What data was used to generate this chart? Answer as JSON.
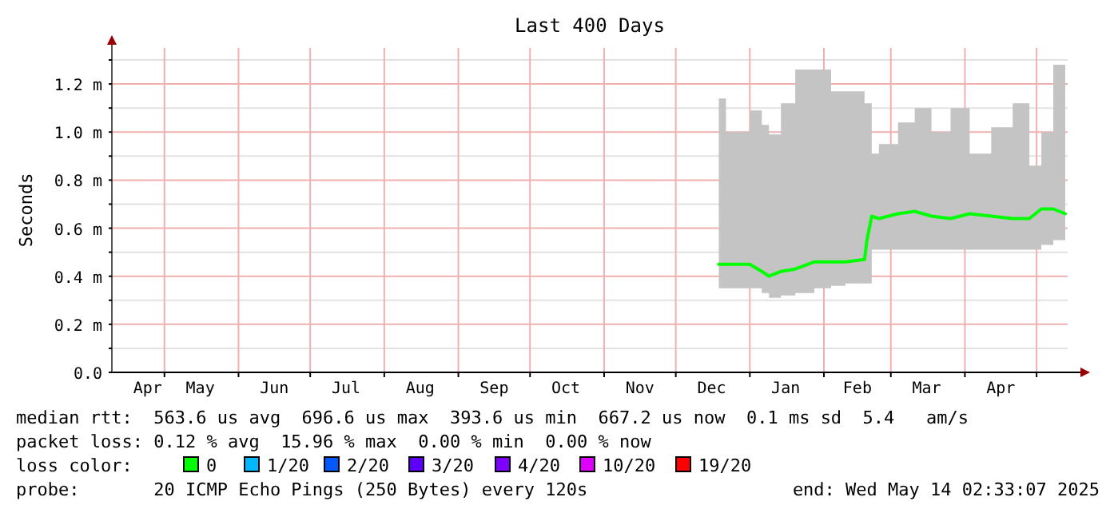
{
  "chart_data": {
    "type": "line",
    "title": "Last 400 Days",
    "ylabel": "Seconds",
    "x": [
      "2024-12-19",
      "2024-12-22",
      "2025-01-01",
      "2025-01-06",
      "2025-01-09",
      "2025-01-14",
      "2025-01-20",
      "2025-01-28",
      "2025-02-04",
      "2025-02-10",
      "2025-02-18",
      "2025-02-19",
      "2025-02-21",
      "2025-02-24",
      "2025-03-04",
      "2025-03-11",
      "2025-03-18",
      "2025-03-26",
      "2025-04-03",
      "2025-04-12",
      "2025-04-21",
      "2025-04-28",
      "2025-05-03",
      "2025-05-08",
      "2025-05-13"
    ],
    "series": [
      {
        "color": "#00ff00",
        "values": [
          0.45,
          0.45,
          0.45,
          0.42,
          0.4,
          0.42,
          0.43,
          0.46,
          0.46,
          0.46,
          0.47,
          0.55,
          0.65,
          0.64,
          0.66,
          0.67,
          0.65,
          0.64,
          0.66,
          0.65,
          0.64,
          0.64,
          0.68,
          0.68,
          0.66
        ],
        "lower": [
          0.35,
          0.35,
          0.35,
          0.33,
          0.31,
          0.32,
          0.33,
          0.35,
          0.36,
          0.37,
          0.37,
          0.37,
          0.51,
          0.51,
          0.51,
          0.51,
          0.51,
          0.51,
          0.51,
          0.51,
          0.51,
          0.51,
          0.53,
          0.55,
          0.55
        ],
        "upper": [
          1.14,
          1.0,
          1.09,
          1.03,
          0.99,
          1.12,
          1.26,
          1.26,
          1.17,
          1.17,
          1.12,
          1.12,
          0.91,
          0.95,
          1.04,
          1.1,
          1.0,
          1.1,
          0.91,
          1.02,
          1.12,
          0.86,
          1.0,
          1.28,
          1.0
        ]
      }
    ],
    "xlim": [
      "2024-04-09",
      "2025-05-14"
    ],
    "xticks": [
      {
        "value": "2024-04-24",
        "label": "Apr"
      },
      {
        "value": "2024-05-01",
        "label": null
      },
      {
        "value": "2024-05-16",
        "label": "May"
      },
      {
        "value": "2024-06-01",
        "label": null
      },
      {
        "value": "2024-06-16",
        "label": "Jun"
      },
      {
        "value": "2024-07-01",
        "label": null
      },
      {
        "value": "2024-07-16",
        "label": "Jul"
      },
      {
        "value": "2024-08-01",
        "label": null
      },
      {
        "value": "2024-08-16",
        "label": "Aug"
      },
      {
        "value": "2024-09-01",
        "label": null
      },
      {
        "value": "2024-09-16",
        "label": "Sep"
      },
      {
        "value": "2024-10-01",
        "label": null
      },
      {
        "value": "2024-10-16",
        "label": "Oct"
      },
      {
        "value": "2024-11-01",
        "label": null
      },
      {
        "value": "2024-11-16",
        "label": "Nov"
      },
      {
        "value": "2024-12-01",
        "label": null
      },
      {
        "value": "2024-12-16",
        "label": "Dec"
      },
      {
        "value": "2025-01-01",
        "label": null
      },
      {
        "value": "2025-01-16",
        "label": "Jan"
      },
      {
        "value": "2025-02-01",
        "label": null
      },
      {
        "value": "2025-02-15",
        "label": "Feb"
      },
      {
        "value": "2025-03-01",
        "label": null
      },
      {
        "value": "2025-03-16",
        "label": "Mar"
      },
      {
        "value": "2025-04-01",
        "label": null
      },
      {
        "value": "2025-04-16",
        "label": "Apr"
      },
      {
        "value": "2025-05-01",
        "label": null
      }
    ],
    "ylim": [
      0,
      1.35
    ],
    "yticks": [
      {
        "value": 0,
        "label": "0.0"
      },
      {
        "value": 0.1,
        "label": null
      },
      {
        "value": 0.2,
        "label": "0.2 m"
      },
      {
        "value": 0.3,
        "label": null
      },
      {
        "value": 0.4,
        "label": "0.4 m"
      },
      {
        "value": 0.5,
        "label": null
      },
      {
        "value": 0.6,
        "label": "0.6 m"
      },
      {
        "value": 0.7,
        "label": null
      },
      {
        "value": 0.8,
        "label": "0.8 m"
      },
      {
        "value": 0.9,
        "label": null
      },
      {
        "value": 1.0,
        "label": "1.0 m"
      },
      {
        "value": 1.1,
        "label": null
      },
      {
        "value": 1.2,
        "label": "1.2 m"
      },
      {
        "value": 1.3,
        "label": null
      }
    ],
    "grid": true,
    "line_style": "solid",
    "marker": "none",
    "annotations": [
      "median rtt:  563.6 us avg  696.6 us max  393.6 us min  667.2 us now  0.1 ms sd  5.4   am/s",
      "packet loss: 0.12 % avg  15.96 % max  0.00 % min  0.00 % now",
      "loss color:",
      "0",
      "1/20",
      "2/20",
      "3/20",
      "4/20",
      "10/20",
      "19/20",
      "probe:       20 ICMP Echo Pings (250 Bytes) every 120s",
      "end: Wed May 14 02:33:07 2025"
    ]
  }
}
